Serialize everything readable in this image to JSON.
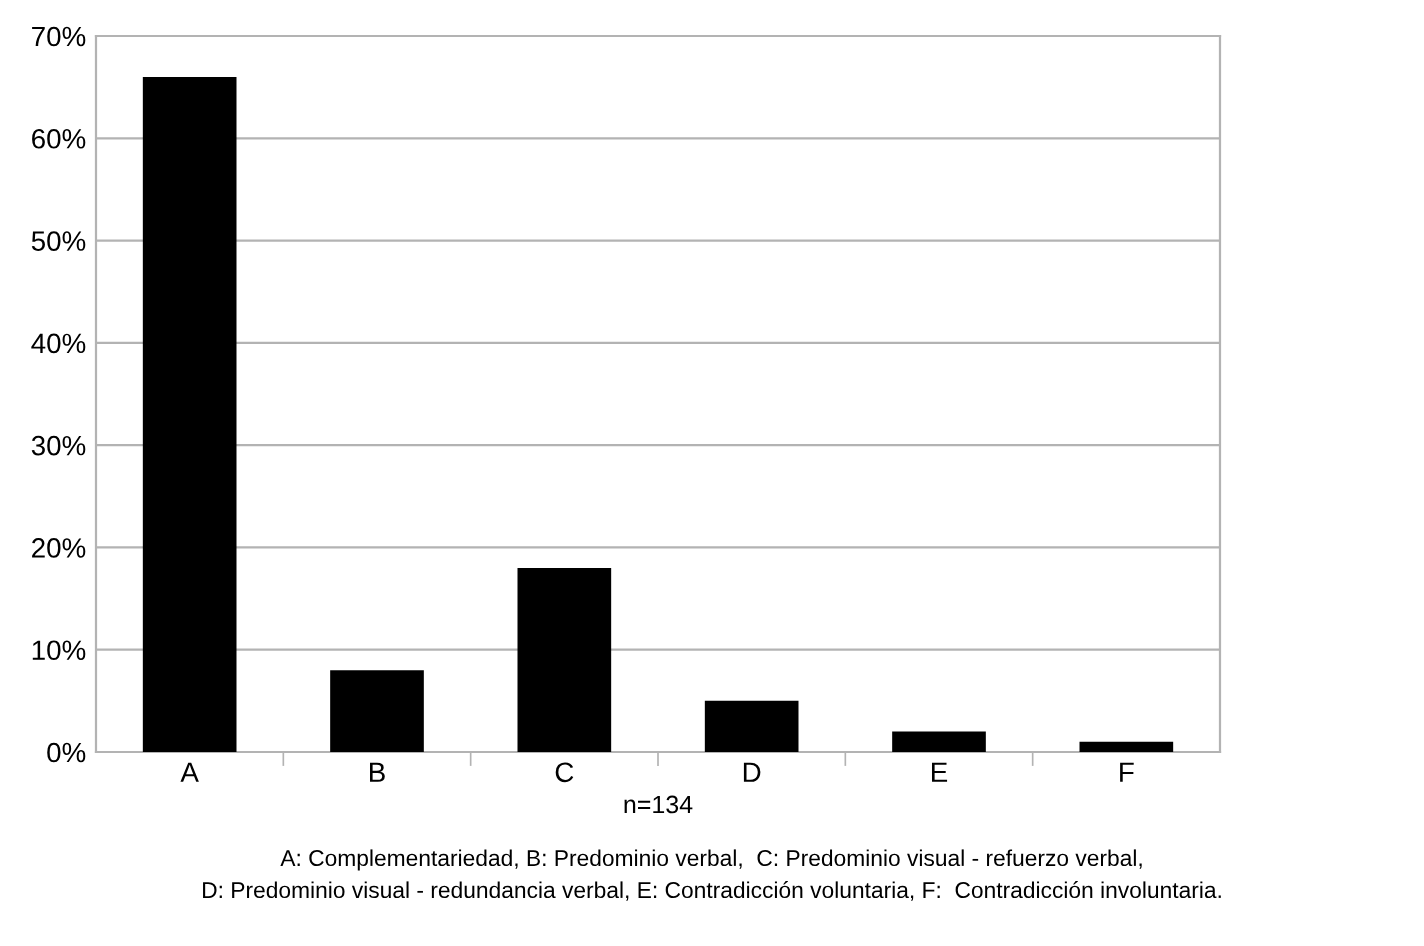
{
  "chart_data": {
    "type": "bar",
    "categories": [
      "A",
      "B",
      "C",
      "D",
      "E",
      "F"
    ],
    "values": [
      66,
      8,
      18,
      5,
      2,
      1
    ],
    "color": "#000000",
    "ylim": [
      0,
      70
    ],
    "yticks": [
      {
        "value": 0,
        "label": "0%"
      },
      {
        "value": 10,
        "label": "10%"
      },
      {
        "value": 20,
        "label": "20%"
      },
      {
        "value": 30,
        "label": "30%"
      },
      {
        "value": 40,
        "label": "40%"
      },
      {
        "value": 50,
        "label": "50%"
      },
      {
        "value": 60,
        "label": "60%"
      },
      {
        "value": 70,
        "label": "70%"
      }
    ],
    "grid": "y",
    "xlabel": "n=134",
    "annotations": [
      "A: Complementariedad, B: Predominio verbal,  C: Predominio visual - refuerzo verbal,",
      "D: Predominio visual - redundancia verbal, E: Contradicción voluntaria, F:  Contradicción involuntaria."
    ]
  }
}
